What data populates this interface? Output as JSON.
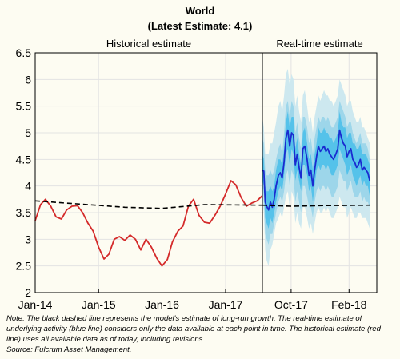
{
  "header": {
    "title": "World",
    "subtitle": "(Latest Estimate: 4.1)"
  },
  "footer": {
    "note": "Note: The black dashed line represents the model's estimate of long-run growth. The real-time estimate of underlying activity (blue line) considers only the data available at each point in time. The historical estimate (red line) uses all available data as of today, including revisions.",
    "source": "Source: Fulcrum Asset Management."
  },
  "colors": {
    "historical": "#d42a2a",
    "realtime": "#1a2bd0",
    "band_outer": "#cde8ef",
    "band_mid": "#9dd6ea",
    "band_inner": "#55c2ea",
    "dashed": "#000000"
  },
  "chart_data": {
    "type": "line",
    "ylim": [
      2,
      6.5
    ],
    "yticks": [
      "2",
      "2.5",
      "3",
      "3.5",
      "4",
      "4.5",
      "5",
      "5.5",
      "6",
      "6.5"
    ],
    "grid": true,
    "panels": [
      {
        "title": "Historical estimate",
        "xlim": [
          "2014-01",
          "2017-08"
        ],
        "xticks": [
          {
            "x": "2014-01",
            "label": "Jan-14"
          },
          {
            "x": "2015-01",
            "label": "Jan-15"
          },
          {
            "x": "2016-01",
            "label": "Jan-16"
          },
          {
            "x": "2017-01",
            "label": "Jan-17"
          }
        ],
        "series": [
          {
            "role": "historical",
            "x": [
              "2014-01",
              "2014-02",
              "2014-03",
              "2014-04",
              "2014-05",
              "2014-06",
              "2014-07",
              "2014-08",
              "2014-09",
              "2014-10",
              "2014-11",
              "2014-12",
              "2015-01",
              "2015-02",
              "2015-03",
              "2015-04",
              "2015-05",
              "2015-06",
              "2015-07",
              "2015-08",
              "2015-09",
              "2015-10",
              "2015-11",
              "2015-12",
              "2016-01",
              "2016-02",
              "2016-03",
              "2016-04",
              "2016-05",
              "2016-06",
              "2016-07",
              "2016-08",
              "2016-09",
              "2016-10",
              "2016-11",
              "2016-12",
              "2017-01",
              "2017-02",
              "2017-03",
              "2017-04",
              "2017-05",
              "2017-06",
              "2017-07",
              "2017-08"
            ],
            "y": [
              3.35,
              3.65,
              3.75,
              3.62,
              3.42,
              3.38,
              3.55,
              3.62,
              3.63,
              3.5,
              3.3,
              3.15,
              2.85,
              2.63,
              2.72,
              3.0,
              3.05,
              2.98,
              3.08,
              3.0,
              2.8,
              3.0,
              2.85,
              2.65,
              2.5,
              2.62,
              2.95,
              3.15,
              3.25,
              3.62,
              3.75,
              3.45,
              3.32,
              3.3,
              3.45,
              3.62,
              3.85,
              4.1,
              4.02,
              3.78,
              3.62,
              3.68,
              3.72,
              3.82
            ]
          },
          {
            "role": "long-run",
            "x": [
              "2014-01",
              "2015-06",
              "2016-01",
              "2016-09",
              "2017-08"
            ],
            "y": [
              3.72,
              3.6,
              3.58,
              3.65,
              3.64
            ]
          }
        ]
      },
      {
        "title": "Real-time estimate",
        "xlim": [
          "2017-08",
          "2018-04"
        ],
        "xticks": [
          {
            "x": "2017-10",
            "label": "Oct-17"
          },
          {
            "x": "2018-02",
            "label": "Feb-18"
          }
        ],
        "series": [
          {
            "role": "realtime",
            "x": [
              "2017-08-01",
              "2017-08-04",
              "2017-08-07",
              "2017-08-10",
              "2017-08-14",
              "2017-08-18",
              "2017-08-22",
              "2017-08-26",
              "2017-08-30",
              "2017-09-04",
              "2017-09-08",
              "2017-09-12",
              "2017-09-16",
              "2017-09-20",
              "2017-09-24",
              "2017-09-28",
              "2017-10-02",
              "2017-10-06",
              "2017-10-10",
              "2017-10-14",
              "2017-10-18",
              "2017-10-22",
              "2017-10-26",
              "2017-10-30",
              "2017-11-04",
              "2017-11-08",
              "2017-11-12",
              "2017-11-16",
              "2017-11-20",
              "2017-11-24",
              "2017-11-28",
              "2017-12-02",
              "2017-12-06",
              "2017-12-10",
              "2017-12-14",
              "2017-12-18",
              "2017-12-22",
              "2017-12-26",
              "2017-12-30",
              "2018-01-04",
              "2018-01-08",
              "2018-01-12",
              "2018-01-16",
              "2018-01-20",
              "2018-01-24",
              "2018-01-28",
              "2018-02-01",
              "2018-02-05",
              "2018-02-09",
              "2018-02-13",
              "2018-02-17",
              "2018-02-21",
              "2018-02-25",
              "2018-03-01",
              "2018-03-05",
              "2018-03-09",
              "2018-03-13",
              "2018-03-17"
            ],
            "y": [
              4.3,
              4.28,
              3.7,
              3.62,
              3.55,
              3.7,
              3.6,
              3.75,
              4.0,
              4.2,
              4.25,
              4.15,
              4.45,
              4.9,
              5.05,
              4.75,
              5.0,
              4.95,
              4.4,
              4.6,
              4.35,
              4.15,
              4.7,
              4.75,
              4.5,
              4.2,
              4.3,
              4.0,
              4.3,
              4.55,
              4.75,
              4.65,
              4.7,
              4.75,
              4.65,
              4.7,
              4.6,
              4.55,
              4.5,
              4.6,
              4.7,
              5.05,
              4.9,
              4.8,
              4.75,
              4.55,
              4.65,
              4.7,
              4.5,
              4.45,
              4.35,
              4.4,
              4.5,
              4.3,
              4.35,
              4.3,
              4.25,
              4.1
            ]
          },
          {
            "role": "long-run",
            "x": [
              "2017-08-01",
              "2017-10-01",
              "2017-12-01",
              "2018-03-17"
            ],
            "y": [
              3.64,
              3.62,
              3.63,
              3.64
            ]
          }
        ],
        "bands": [
          {
            "role": "outer",
            "lower": [
              3.8,
              3.5,
              2.8,
              2.6,
              2.5,
              2.8,
              2.9,
              3.1,
              3.3,
              3.4,
              3.5,
              3.4,
              3.6,
              3.8,
              3.9,
              3.6,
              3.9,
              3.8,
              3.3,
              3.5,
              3.3,
              3.2,
              3.6,
              3.6,
              3.4,
              3.2,
              3.3,
              3.1,
              3.3,
              3.5,
              3.6,
              3.5,
              3.5,
              3.6,
              3.5,
              3.6,
              3.5,
              3.4,
              3.4,
              3.5,
              3.6,
              3.8,
              3.7,
              3.6,
              3.6,
              3.4,
              3.5,
              3.6,
              3.5,
              3.4,
              3.4,
              3.5,
              3.5,
              3.4,
              3.4,
              3.4,
              3.3,
              3.2
            ],
            "upper": [
              5.3,
              5.1,
              4.6,
              4.6,
              4.6,
              4.8,
              4.8,
              5.0,
              5.2,
              5.5,
              5.6,
              5.4,
              5.7,
              6.1,
              6.2,
              5.9,
              6.1,
              6.0,
              5.5,
              5.7,
              5.4,
              5.2,
              5.7,
              5.8,
              5.5,
              5.2,
              5.3,
              5.0,
              5.3,
              5.5,
              5.7,
              5.6,
              5.7,
              5.8,
              5.7,
              5.7,
              5.6,
              5.6,
              5.5,
              5.6,
              5.7,
              6.0,
              5.9,
              5.8,
              5.7,
              5.5,
              5.6,
              5.6,
              5.4,
              5.3,
              5.2,
              5.2,
              5.3,
              5.1,
              5.1,
              5.0,
              4.9,
              4.8
            ]
          },
          {
            "role": "mid",
            "lower": [
              4.0,
              3.8,
              3.1,
              3.0,
              2.9,
              3.1,
              3.1,
              3.3,
              3.5,
              3.7,
              3.8,
              3.7,
              3.9,
              4.2,
              4.3,
              4.0,
              4.3,
              4.2,
              3.7,
              3.9,
              3.7,
              3.5,
              4.0,
              4.0,
              3.8,
              3.6,
              3.6,
              3.4,
              3.7,
              3.9,
              4.0,
              3.9,
              4.0,
              4.0,
              3.9,
              4.0,
              3.9,
              3.8,
              3.8,
              3.9,
              4.0,
              4.3,
              4.2,
              4.1,
              4.1,
              3.9,
              4.0,
              4.1,
              3.9,
              3.8,
              3.8,
              3.8,
              3.9,
              3.7,
              3.8,
              3.7,
              3.7,
              3.6
            ],
            "upper": [
              4.9,
              4.8,
              4.3,
              4.2,
              4.2,
              4.3,
              4.2,
              4.3,
              4.5,
              4.7,
              4.8,
              4.6,
              5.0,
              5.5,
              5.6,
              5.3,
              5.6,
              5.5,
              5.0,
              5.2,
              4.9,
              4.7,
              5.3,
              5.3,
              5.1,
              4.8,
              4.9,
              4.6,
              4.9,
              5.1,
              5.3,
              5.2,
              5.3,
              5.3,
              5.2,
              5.3,
              5.2,
              5.1,
              5.1,
              5.2,
              5.3,
              5.6,
              5.5,
              5.4,
              5.3,
              5.1,
              5.2,
              5.2,
              5.0,
              4.9,
              4.8,
              4.9,
              5.0,
              4.8,
              4.8,
              4.8,
              4.7,
              4.5
            ]
          },
          {
            "role": "inner",
            "lower": [
              4.1,
              4.0,
              3.4,
              3.3,
              3.2,
              3.4,
              3.3,
              3.5,
              3.7,
              3.9,
              4.0,
              3.9,
              4.2,
              4.6,
              4.7,
              4.4,
              4.7,
              4.6,
              4.1,
              4.3,
              4.1,
              3.9,
              4.4,
              4.4,
              4.2,
              3.9,
              4.0,
              3.7,
              4.0,
              4.3,
              4.4,
              4.3,
              4.4,
              4.4,
              4.3,
              4.4,
              4.3,
              4.2,
              4.2,
              4.3,
              4.4,
              4.7,
              4.6,
              4.5,
              4.4,
              4.2,
              4.3,
              4.4,
              4.2,
              4.1,
              4.0,
              4.1,
              4.2,
              4.0,
              4.1,
              4.0,
              4.0,
              3.8
            ],
            "upper": [
              4.6,
              4.5,
              4.0,
              3.9,
              3.9,
              4.0,
              3.9,
              4.0,
              4.3,
              4.5,
              4.5,
              4.4,
              4.7,
              5.2,
              5.4,
              5.1,
              5.3,
              5.3,
              4.7,
              4.9,
              4.6,
              4.4,
              5.0,
              5.1,
              4.8,
              4.5,
              4.6,
              4.3,
              4.6,
              4.8,
              5.1,
              5.0,
              5.0,
              5.1,
              5.0,
              5.0,
              4.9,
              4.9,
              4.8,
              4.9,
              5.0,
              5.4,
              5.2,
              5.1,
              5.1,
              4.9,
              5.0,
              5.0,
              4.8,
              4.8,
              4.7,
              4.7,
              4.8,
              4.6,
              4.6,
              4.6,
              4.5,
              4.4
            ]
          }
        ]
      }
    ]
  }
}
